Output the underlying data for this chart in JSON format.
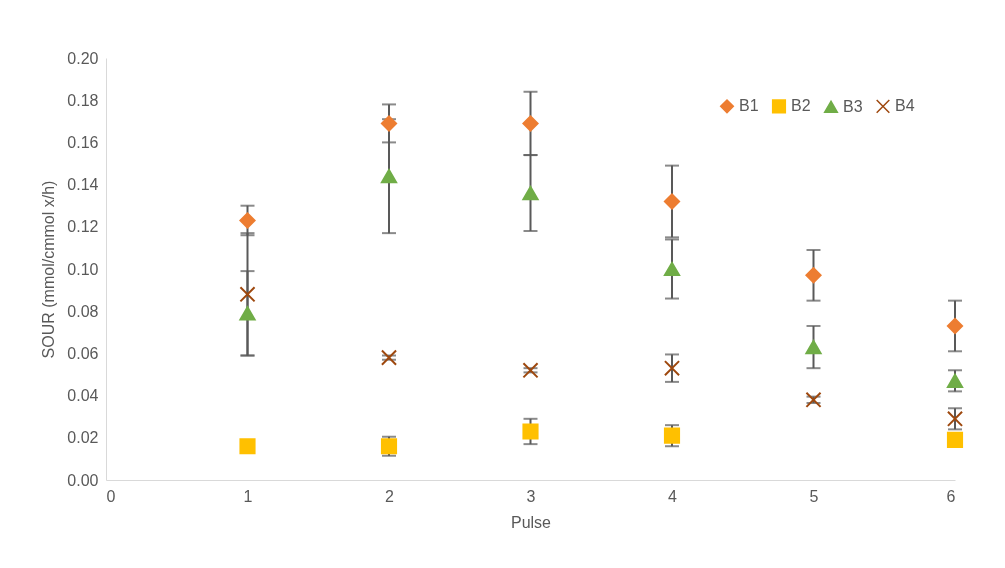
{
  "chart_data": {
    "type": "scatter",
    "xlabel": "Pulse",
    "ylabel": "SOUR (mmol/cmmol x/h)",
    "x": [
      1,
      2,
      3,
      4,
      5,
      6
    ],
    "xlim": [
      0,
      6
    ],
    "xticks": [
      0,
      1,
      2,
      3,
      4,
      5,
      6
    ],
    "ylim": [
      0,
      0.2
    ],
    "yticks": [
      {
        "value": 0,
        "label": "0.00"
      },
      {
        "value": 0.02,
        "label": "0.02"
      },
      {
        "value": 0.04,
        "label": "0.04"
      },
      {
        "value": 0.06,
        "label": "0.06"
      },
      {
        "value": 0.08,
        "label": "0.08"
      },
      {
        "value": 0.1,
        "label": "0.10"
      },
      {
        "value": 0.12,
        "label": "0.12"
      },
      {
        "value": 0.14,
        "label": "0.14"
      },
      {
        "value": 0.16,
        "label": "0.16"
      },
      {
        "value": 0.18,
        "label": "0.18"
      },
      {
        "value": 0.2,
        "label": "0.20"
      }
    ],
    "grid": false,
    "legend": "top right",
    "series": [
      {
        "name": "B1",
        "color": "#ed7d31",
        "marker": "diamond",
        "values": [
          0.123,
          0.169,
          0.169,
          0.132,
          0.097,
          0.073
        ],
        "errors": [
          0.007,
          0.009,
          0.015,
          0.017,
          0.012,
          0.012
        ]
      },
      {
        "name": "B2",
        "color": "#ffc000",
        "marker": "square",
        "values": [
          0.016,
          0.016,
          0.023,
          0.021,
          null,
          0.019
        ],
        "errors": [
          null,
          0.0045,
          0.006,
          0.005,
          null,
          null
        ]
      },
      {
        "name": "B3",
        "color": "#70ad47",
        "marker": "triangle",
        "values": [
          0.079,
          0.144,
          0.136,
          0.1,
          0.063,
          0.047
        ],
        "errors": [
          0.02,
          0.027,
          0.018,
          0.014,
          0.01,
          0.005
        ]
      },
      {
        "name": "B4",
        "color": "#9e480e",
        "marker": "cross",
        "values": [
          0.088,
          0.058,
          0.052,
          0.053,
          0.038,
          0.029
        ],
        "errors": [
          0.029,
          0.001,
          0.001,
          0.0065,
          0.0015,
          0.005
        ]
      }
    ]
  }
}
